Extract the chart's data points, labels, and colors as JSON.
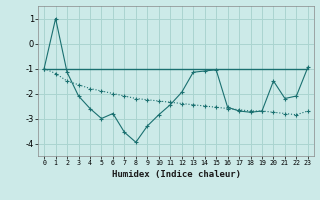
{
  "xlabel": "Humidex (Indice chaleur)",
  "bg_color": "#cceae8",
  "grid_color": "#aad4d0",
  "line_color": "#1a7070",
  "xlim": [
    -0.5,
    23.5
  ],
  "ylim": [
    -4.5,
    1.5
  ],
  "yticks": [
    -4,
    -3,
    -2,
    -1,
    0,
    1
  ],
  "xticks": [
    0,
    1,
    2,
    3,
    4,
    5,
    6,
    7,
    8,
    9,
    10,
    11,
    12,
    13,
    14,
    15,
    16,
    17,
    18,
    19,
    20,
    21,
    22,
    23
  ],
  "series1_x": [
    0,
    1,
    2,
    3,
    4,
    5,
    6,
    7,
    8,
    9,
    10,
    11,
    12,
    13,
    14,
    15,
    16,
    17,
    18,
    19,
    20,
    21,
    22,
    23
  ],
  "series1_y": [
    -1.0,
    1.0,
    -1.15,
    -2.1,
    -2.6,
    -3.0,
    -2.8,
    -3.55,
    -3.95,
    -3.3,
    -2.85,
    -2.45,
    -1.95,
    -1.15,
    -1.1,
    -1.05,
    -2.55,
    -2.7,
    -2.75,
    -2.7,
    -1.5,
    -2.2,
    -2.1,
    -0.95
  ],
  "series2_x": [
    0,
    1,
    2,
    3,
    4,
    5,
    6,
    7,
    8,
    9,
    10,
    11,
    12,
    13,
    14,
    15,
    16,
    17,
    18,
    19,
    20,
    21,
    22,
    23
  ],
  "series2_y": [
    -1.0,
    -1.2,
    -1.5,
    -1.65,
    -1.8,
    -1.9,
    -2.0,
    -2.1,
    -2.2,
    -2.25,
    -2.3,
    -2.35,
    -2.4,
    -2.45,
    -2.5,
    -2.55,
    -2.6,
    -2.65,
    -2.7,
    -2.7,
    -2.75,
    -2.8,
    -2.85,
    -2.7
  ],
  "series3_x": [
    0,
    23
  ],
  "series3_y": [
    -1.0,
    -1.0
  ]
}
